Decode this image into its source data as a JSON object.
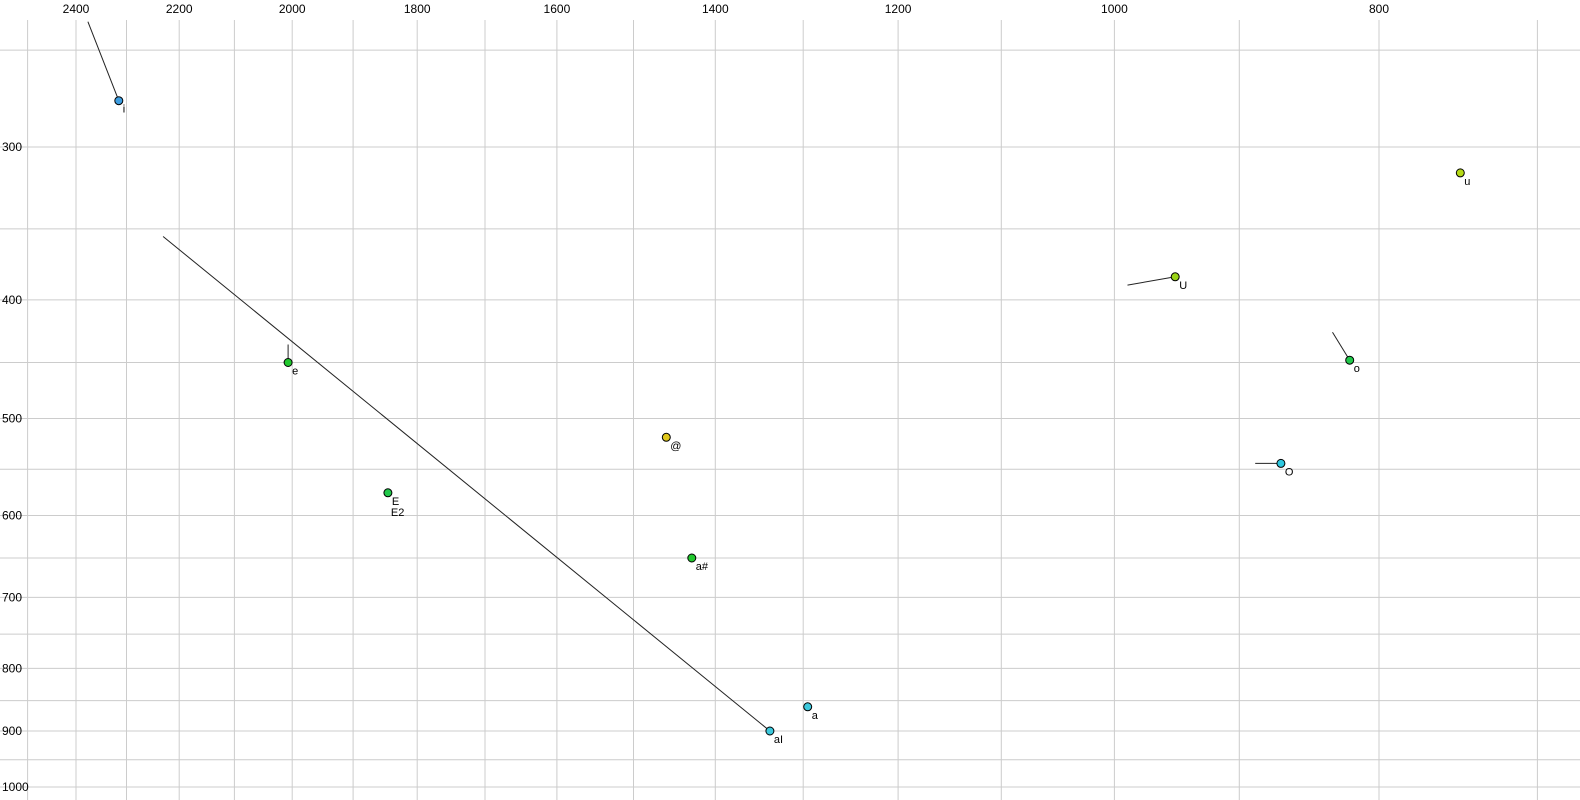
{
  "window": {
    "background": "#ffffff"
  },
  "chart_data": {
    "type": "scatter",
    "title": "",
    "xlabel": "",
    "ylabel": "",
    "grid": true,
    "legend": "none",
    "x_axis": {
      "scale": "log",
      "direction": "decreasing-left-to-right",
      "tick_values": [
        2400,
        2200,
        2000,
        1800,
        1600,
        1400,
        1200,
        1000,
        800
      ],
      "tick_labels": [
        "2400",
        "2200",
        "2000",
        "1800",
        "1600",
        "1400",
        "1200",
        "1000",
        "800"
      ],
      "minor_grid_step": 100,
      "minor_grid_range": [
        2500,
        700
      ],
      "visible_range": [
        2560,
        670
      ]
    },
    "y_axis": {
      "scale": "log",
      "direction": "increasing-downward",
      "tick_values": [
        300,
        400,
        500,
        600,
        700,
        800,
        900,
        1000
      ],
      "tick_labels": [
        "300",
        "400",
        "500",
        "600",
        "700",
        "800",
        "900",
        "1000"
      ],
      "minor_grid_step": 50,
      "minor_grid_range": [
        250,
        1000
      ],
      "visible_range": [
        227,
        1025
      ]
    },
    "points": [
      {
        "label": "i",
        "f2": 2315,
        "f1": 275,
        "fill": "#3d9de0"
      },
      {
        "label": "u",
        "f2": 747,
        "f1": 315,
        "fill": "#b5d916"
      },
      {
        "label": "U",
        "f2": 950,
        "f1": 383,
        "fill": "#9ad416"
      },
      {
        "label": "e",
        "f2": 2007,
        "f1": 450,
        "fill": "#21c82e"
      },
      {
        "label": "o",
        "f2": 820,
        "f1": 448,
        "fill": "#21c84a"
      },
      {
        "label": "@",
        "f2": 1459,
        "f1": 518,
        "fill": "#e0c81c"
      },
      {
        "label": "O",
        "f2": 869,
        "f1": 544,
        "fill": "#2fc8e0"
      },
      {
        "label": "E",
        "label2": "E2",
        "f2": 1845,
        "f1": 575,
        "fill": "#21c84a"
      },
      {
        "label": "a#",
        "f2": 1428,
        "f1": 650,
        "fill": "#21c82e"
      },
      {
        "label": "a",
        "f2": 1295,
        "f1": 860,
        "fill": "#3cc8dc"
      },
      {
        "label": "aI",
        "f2": 1337,
        "f1": 900,
        "fill": "#3cc8dc"
      }
    ],
    "trajectories": [
      {
        "name": "i",
        "from": {
          "f2": 2376,
          "f1": 237
        },
        "to": {
          "f2": 2315,
          "f1": 275
        }
      },
      {
        "name": "aI",
        "from": {
          "f2": 2230,
          "f1": 355
        },
        "to": {
          "f2": 1337,
          "f1": 900
        }
      },
      {
        "name": "U",
        "from": {
          "f2": 989,
          "f1": 389
        },
        "to": {
          "f2": 950,
          "f1": 383
        }
      },
      {
        "name": "o",
        "from": {
          "f2": 832,
          "f1": 425
        },
        "to": {
          "f2": 820,
          "f1": 448
        }
      },
      {
        "name": "O",
        "from": {
          "f2": 888,
          "f1": 544
        },
        "to": {
          "f2": 869,
          "f1": 544
        }
      },
      {
        "name": "e",
        "from": {
          "f2": 2007,
          "f1": 435
        },
        "to": {
          "f2": 2007,
          "f1": 450
        }
      }
    ],
    "colors": {
      "grid": "#cccccc",
      "trajectory": "#222222",
      "point_stroke": "#000000",
      "tick_text": "#000000",
      "background": "#ffffff"
    }
  }
}
